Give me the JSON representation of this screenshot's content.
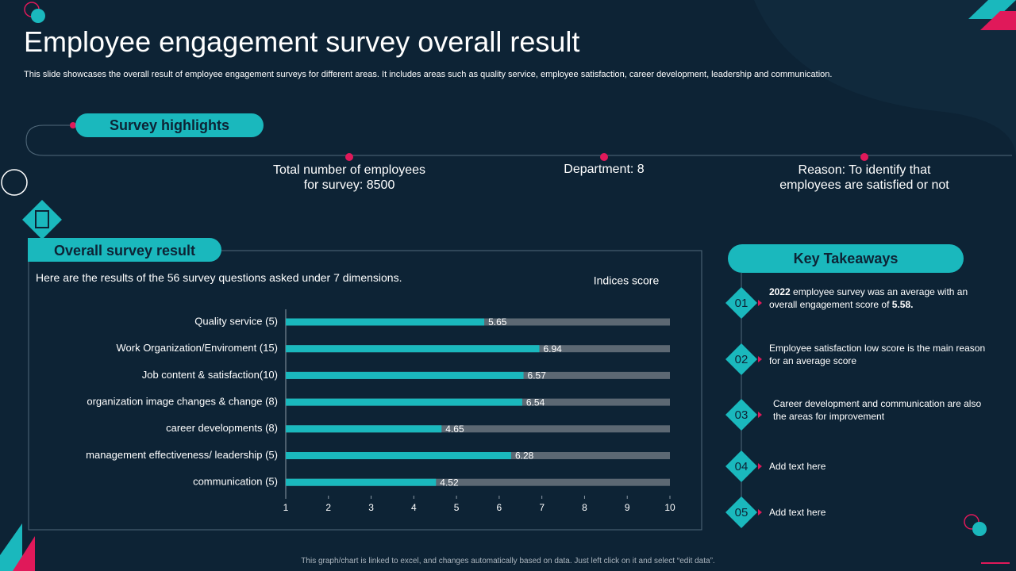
{
  "header": {
    "title": "Employee engagement survey overall result",
    "description": "This slide showcases the overall result of employee engagement surveys for different areas. It includes areas such as quality service, employee satisfaction, career development, leadership and communication."
  },
  "highlights": {
    "heading": "Survey highlights",
    "items": [
      "Total number of employees for survey: 8500",
      "Department: 8",
      "Reason: To identify that employees are satisfied or not"
    ]
  },
  "panel": {
    "heading": "Overall survey result",
    "intro": "Here are the results of the 56 survey questions asked under 7 dimensions."
  },
  "chart_data": {
    "type": "hbar",
    "title": "Indices score",
    "categories": [
      "Quality service (5)",
      "Work Organization/Enviroment (15)",
      "Job content & satisfaction(10)",
      "organization image changes & change (8)",
      "career developments (8)",
      "management effectiveness/ leadership (5)",
      "communication (5)"
    ],
    "values": [
      5.65,
      6.94,
      6.57,
      6.54,
      4.65,
      6.28,
      4.52
    ],
    "color": "#1ab8bd",
    "track_color": "#5c6873",
    "xlim": [
      1,
      10
    ],
    "xticks": [
      1,
      2,
      3,
      4,
      5,
      6,
      7,
      8,
      9,
      10
    ]
  },
  "takeaways": {
    "heading": "Key Takeaways",
    "items": [
      {
        "number": "01",
        "text": [
          "2022",
          " employee survey was an average with an overall engagement score of ",
          "5.58."
        ]
      },
      {
        "number": "02",
        "text": [
          "Employee satisfaction low score is the main reason for an average score"
        ]
      },
      {
        "number": "03",
        "text": [
          "Career development and communication are also the areas for improvement"
        ]
      },
      {
        "number": "04",
        "text": [
          "Add text here"
        ]
      },
      {
        "number": "05",
        "text": [
          "Add text here"
        ]
      }
    ]
  },
  "footer": "This graph/chart is linked to excel, and changes automatically based on data. Just left click on it and select “edit data”."
}
